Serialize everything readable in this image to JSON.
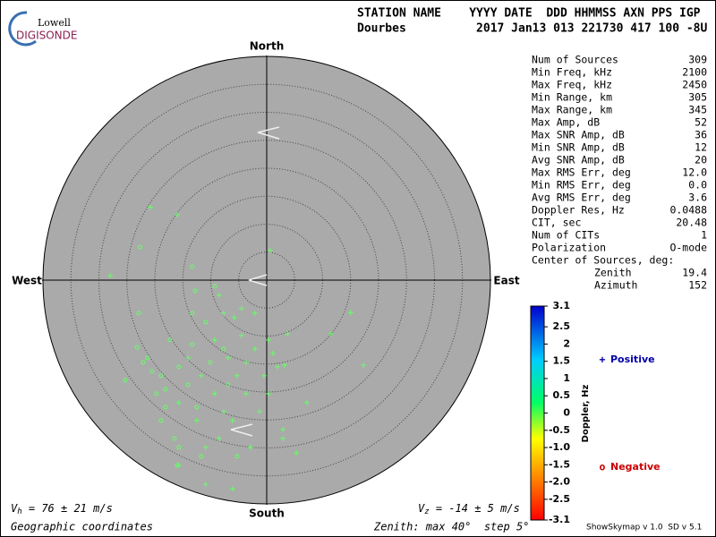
{
  "logo": {
    "line1": "Lowell",
    "line2": "DIGISONDE"
  },
  "header": {
    "labels": "STATION NAME    YYYY DATE  DDD HHMMSS AXN PPS IGP",
    "values": "Dourbes          2017 Jan13 013 221730 417 100 -8U"
  },
  "chart_data": {
    "type": "skymap",
    "directions": {
      "north": "North",
      "south": "South",
      "west": "West",
      "east": "East"
    },
    "xlim": [
      -40,
      40
    ],
    "ylim": [
      -40,
      40
    ],
    "rings": [
      5,
      10,
      15,
      20,
      25,
      30,
      35
    ],
    "series": [
      {
        "name": "Positive",
        "marker": "+",
        "color": "#66ff66",
        "legend_color": "#0000aa",
        "x": [
          -20.8,
          -16.0,
          0.6,
          -28.0,
          15.0,
          17.3,
          11.5,
          3.7,
          3.2,
          7.2,
          5.3,
          2.9,
          2.9,
          -6.1,
          -15.7,
          -10.9,
          -8.5,
          -7.7,
          -5.8,
          -4.5,
          -9.3,
          -6.9,
          -5.3,
          -3.7,
          -1.3,
          0.3,
          -2.1,
          -6.1,
          -8.5,
          -10.9,
          -12.5,
          -15.7,
          -2.9,
          -0.5,
          1.1,
          -9.3,
          -11.7,
          -14.1,
          -2.1,
          -4.5,
          -7.7,
          0.3,
          1.9,
          -3.7
        ],
        "y": [
          13.0,
          11.7,
          5.3,
          0.8,
          -5.8,
          -15.2,
          -9.6,
          -9.6,
          -15.2,
          -21.9,
          -30.9,
          -26.7,
          -28.3,
          -37.3,
          -33.1,
          -36.5,
          -2.7,
          -5.9,
          -6.7,
          -5.1,
          -10.7,
          -13.9,
          -17.1,
          -20.3,
          -23.5,
          -10.7,
          -12.3,
          -25.1,
          -28.3,
          -29.9,
          -25.1,
          -21.9,
          -29.9,
          -17.1,
          -13.1,
          -20.3,
          -17.1,
          -13.9,
          -5.9,
          -9.9,
          -23.5,
          -20.3,
          -15.5,
          -14.7
        ]
      },
      {
        "name": "Negative",
        "marker": "o",
        "color": "#66ff66",
        "legend_color": "#cc0000",
        "x": [
          -22.6,
          -13.3,
          -12.8,
          -22.9,
          -23.2,
          -25.3,
          -21.3,
          -18.9,
          -19.7,
          -18.1,
          -18.9,
          -16.5,
          -14.1,
          -15.7,
          -13.3,
          -10.9,
          -9.3,
          -11.7,
          -5.3,
          -13.3,
          -17.3,
          -20.5,
          -22.1,
          -7.7,
          -10.1,
          -15.7,
          -6.9,
          -18.1,
          -12.5,
          -16.0
        ],
        "y": [
          5.9,
          2.4,
          -1.9,
          -5.9,
          -12.0,
          -17.9,
          -13.9,
          -17.1,
          -20.3,
          -22.7,
          -25.1,
          -28.3,
          -18.7,
          -15.5,
          -11.5,
          -7.5,
          -1.1,
          -31.5,
          -31.5,
          -5.9,
          -10.7,
          -16.3,
          -14.7,
          -12.3,
          -14.7,
          -29.9,
          -18.7,
          -19.5,
          -22.7,
          -33.1
        ]
      }
    ],
    "colorbar": {
      "label": "Doppler, Hz",
      "lim": [
        -3.1,
        3.1
      ],
      "ticks": [
        3.1,
        2.5,
        2,
        1.5,
        1,
        0.5,
        0,
        -0.5,
        {
          "value": -1,
          "label": "-1.0"
        },
        -1.5,
        {
          "value": -2,
          "label": "-2.0"
        },
        -2.5,
        -3.1
      ]
    }
  },
  "stats": {
    "rows": [
      [
        "Num of Sources",
        "309"
      ],
      [
        "Min Freq, kHz",
        "2100"
      ],
      [
        "Max Freq, kHz",
        "2450"
      ],
      [
        "Min Range, km",
        "305"
      ],
      [
        "Max Range, km",
        "345"
      ],
      [
        "Max Amp, dB",
        "52"
      ],
      [
        "Max SNR Amp, dB",
        "36"
      ],
      [
        "Min SNR Amp, dB",
        "12"
      ],
      [
        "Avg SNR Amp, dB",
        "20"
      ],
      [
        "Max RMS Err, deg",
        "12.0"
      ],
      [
        "Min RMS Err, deg",
        "0.0"
      ],
      [
        "Avg RMS Err, deg",
        "3.6"
      ],
      [
        "Doppler Res, Hz",
        "0.0488"
      ],
      [
        "CIT, sec",
        "20.48"
      ],
      [
        "Num of CITs",
        "1"
      ],
      [
        "Polarization",
        "O-mode"
      ]
    ],
    "center": {
      "title": "Center of Sources, deg:",
      "rows": [
        [
          "Zenith",
          "19.4"
        ],
        [
          "Azimuth",
          "152"
        ]
      ]
    }
  },
  "footer": {
    "vh": {
      "symbol": "V",
      "sub": "h",
      "text": " = 76 ± 21 m/s"
    },
    "vz": {
      "symbol": "V",
      "sub": "z",
      "text": " = -14 ± 5 m/s"
    },
    "coords": "Geographic coordinates",
    "zenith": "Zenith: max 40°  step 5°",
    "version": "ShowSkymap v 1.0  SD v 5.1"
  }
}
